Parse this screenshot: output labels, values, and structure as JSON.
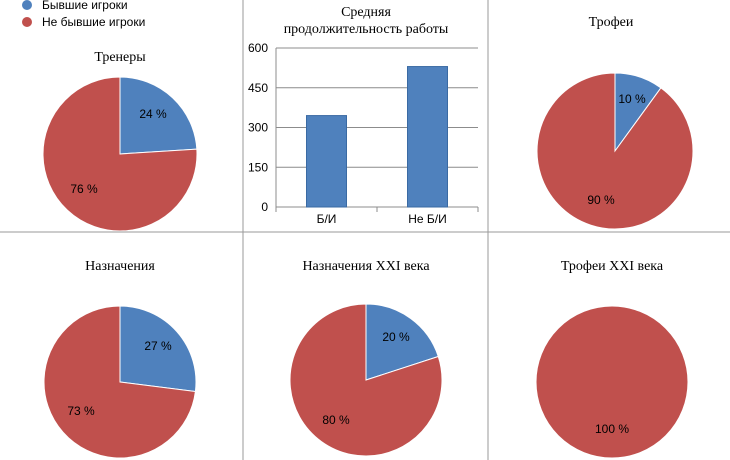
{
  "legend": {
    "former": {
      "label": "Бывшие игроки",
      "color": "#4f81bd"
    },
    "nonformer": {
      "label": "Не бывшие игроки",
      "color": "#c0504d"
    }
  },
  "chart_data": [
    {
      "type": "pie",
      "title": "Тренеры",
      "series": [
        {
          "name": "Бывшие игроки",
          "value": 24,
          "label": "24 %"
        },
        {
          "name": "Не бывшие игроки",
          "value": 76,
          "label": "76 %"
        }
      ]
    },
    {
      "type": "bar",
      "title_line1": "Средняя",
      "title_line2": "продолжительность работы",
      "categories": [
        "Б/И",
        "Не Б/И"
      ],
      "values": [
        345,
        530
      ],
      "ylim": [
        0,
        600
      ],
      "yticks": [
        "0",
        "150",
        "300",
        "450",
        "600"
      ],
      "bar_color": "#4f81bd"
    },
    {
      "type": "pie",
      "title": "Трофеи",
      "series": [
        {
          "name": "Бывшие игроки",
          "value": 10,
          "label": "10 %"
        },
        {
          "name": "Не бывшие игроки",
          "value": 90,
          "label": "90 %"
        }
      ]
    },
    {
      "type": "pie",
      "title": "Назначения",
      "series": [
        {
          "name": "Бывшие игроки",
          "value": 27,
          "label": "27 %"
        },
        {
          "name": "Не бывшие игроки",
          "value": 73,
          "label": "73 %"
        }
      ]
    },
    {
      "type": "pie",
      "title": "Назначения XXI века",
      "series": [
        {
          "name": "Бывшие игроки",
          "value": 20,
          "label": "20 %"
        },
        {
          "name": "Не бывшие игроки",
          "value": 80,
          "label": "80 %"
        }
      ]
    },
    {
      "type": "pie",
      "title": "Трофеи XXI века",
      "series": [
        {
          "name": "Бывшие игроки",
          "value": 0,
          "label": ""
        },
        {
          "name": "Не бывшие игроки",
          "value": 100,
          "label": "100 %"
        }
      ]
    }
  ]
}
